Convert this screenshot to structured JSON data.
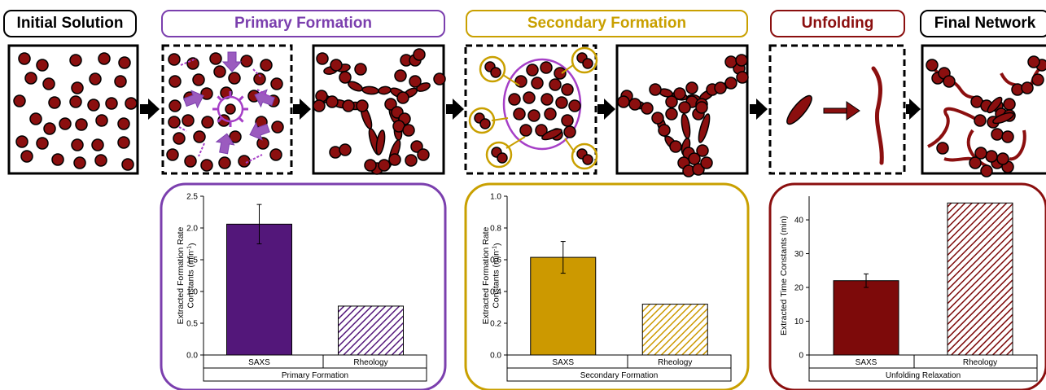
{
  "stages": [
    {
      "label": "Initial Solution",
      "color": "#000000"
    },
    {
      "label": "Primary Formation",
      "color": "#7b3fae"
    },
    {
      "label": "Secondary Formation",
      "color": "#c9a000"
    },
    {
      "label": "Unfolding",
      "color": "#8b0f0f"
    },
    {
      "label": "Final Network",
      "color": "#000000"
    }
  ],
  "colors": {
    "particle": "#8b0f0f",
    "primary_bar": "#53177a",
    "secondary_bar": "#cc9900",
    "unfolding_bar": "#7d0a0a",
    "accent_purple": "#a63fc7",
    "accent_gold": "#c9a000"
  },
  "chart_data": [
    {
      "type": "bar",
      "categories": [
        "SAXS",
        "Rheology"
      ],
      "values": [
        2.06,
        0.77
      ],
      "errors": [
        0.31,
        0.0
      ],
      "group_label": "Primary Formation",
      "ylabel_line1": "Extracted Formation Rate",
      "ylabel_line2": "Constants (min",
      "ylabel_sup": "-1",
      "ylabel_end": ")",
      "ylim": [
        0,
        2.5
      ],
      "yticks": [
        "0.0",
        "0.5",
        "1.0",
        "1.5",
        "2.0",
        "2.5"
      ],
      "ytick_values": [
        0,
        0.5,
        1.0,
        1.5,
        2.0,
        2.5
      ],
      "color": "#53177a"
    },
    {
      "type": "bar",
      "categories": [
        "SAXS",
        "Rheology"
      ],
      "values": [
        0.615,
        0.32
      ],
      "errors": [
        0.1,
        0.0
      ],
      "group_label": "Secondary Formation",
      "ylabel_line1": "Extracted Formation Rate",
      "ylabel_line2": "Constants (min",
      "ylabel_sup": "-1",
      "ylabel_end": ")",
      "ylim": [
        0,
        1.0
      ],
      "yticks": [
        "0.0",
        "0.2",
        "0.4",
        "0.6",
        "0.8",
        "1.0"
      ],
      "ytick_values": [
        0,
        0.2,
        0.4,
        0.6,
        0.8,
        1.0
      ],
      "color": "#cc9900"
    },
    {
      "type": "bar",
      "categories": [
        "SAXS",
        "Rheology"
      ],
      "values": [
        22,
        45
      ],
      "errors": [
        2,
        0
      ],
      "group_label": "Unfolding Relaxation",
      "ylabel_line1": "Extracted Time Constants (min)",
      "ylabel_line2": "",
      "ylabel_sup": "",
      "ylabel_end": "",
      "ylim": [
        0,
        47
      ],
      "yticks": [
        "0",
        "10",
        "20",
        "30",
        "40"
      ],
      "ytick_values": [
        0,
        10,
        20,
        30,
        40
      ],
      "color": "#7d0a0a"
    }
  ]
}
